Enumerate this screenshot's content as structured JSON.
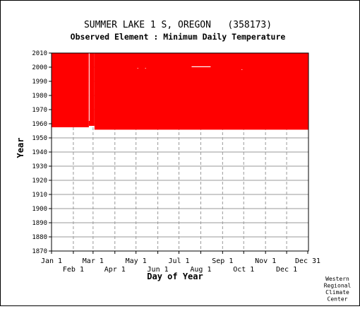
{
  "chart_data": {
    "type": "heatmap",
    "title": "SUMMER LAKE 1 S, OREGON   (358173)",
    "subtitle": "Observed Element : Minimum Daily Temperature",
    "xlabel": "Day of Year",
    "ylabel": "Year",
    "credit": [
      "Western",
      "Regional",
      "Climate",
      "Center"
    ],
    "xlim": [
      1,
      366
    ],
    "ylim": [
      1870,
      2010
    ],
    "x_ticks_top": [
      {
        "label": "Jan 1",
        "day": 1
      },
      {
        "label": "Mar 1",
        "day": 60
      },
      {
        "label": "May 1",
        "day": 121
      },
      {
        "label": "Jul 1",
        "day": 182
      },
      {
        "label": "Sep 1",
        "day": 244
      },
      {
        "label": "Nov 1",
        "day": 305
      },
      {
        "label": "Dec 31",
        "day": 365
      }
    ],
    "x_ticks_bottom": [
      {
        "label": "Feb 1",
        "day": 32
      },
      {
        "label": "Apr 1",
        "day": 91
      },
      {
        "label": "Jun 1",
        "day": 152
      },
      {
        "label": "Aug 1",
        "day": 213
      },
      {
        "label": "Oct 1",
        "day": 274
      },
      {
        "label": "Dec 1",
        "day": 335
      }
    ],
    "y_ticks": [
      1870,
      1880,
      1890,
      1900,
      1910,
      1920,
      1930,
      1940,
      1950,
      1960,
      1970,
      1980,
      1990,
      2000,
      2010
    ],
    "fill_color": "#ff0000",
    "coverage": [
      {
        "day_start": 1,
        "day_end": 54,
        "year_start": 1957.5,
        "year_end": 2010
      },
      {
        "day_start": 54,
        "day_end": 62,
        "year_start": 1958.5,
        "year_end": 2010
      },
      {
        "day_start": 62,
        "day_end": 366,
        "year_start": 1955.8,
        "year_end": 2010
      }
    ],
    "gaps": [
      {
        "day_start": 54,
        "day_end": 55,
        "year_start": 1962,
        "year_end": 2010
      },
      {
        "day_start": 200,
        "day_end": 227,
        "year_start": 2000,
        "year_end": 2000.6
      },
      {
        "day_start": 123,
        "day_end": 124,
        "year_start": 1999,
        "year_end": 1999.5
      },
      {
        "day_start": 134,
        "day_end": 135,
        "year_start": 1999,
        "year_end": 1999.5
      },
      {
        "day_start": 271,
        "day_end": 272,
        "year_start": 1998,
        "year_end": 1998.5
      }
    ]
  }
}
